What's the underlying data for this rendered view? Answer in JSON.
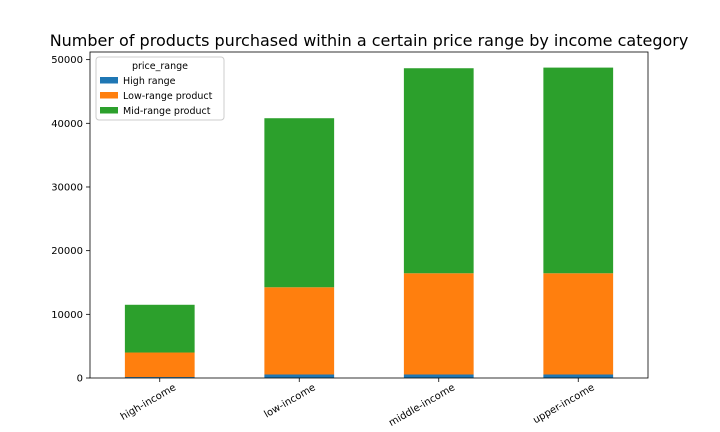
{
  "chart_data": {
    "type": "bar",
    "stacked": true,
    "title": "Number of products purchased within a certain price range by income category",
    "xlabel": "",
    "ylabel": "",
    "categories": [
      "high-income",
      "low-income",
      "middle-income",
      "upper-income"
    ],
    "series": [
      {
        "name": "High range",
        "color": "#1f77b4",
        "values": [
          150,
          550,
          550,
          550
        ]
      },
      {
        "name": "Low-range product",
        "color": "#ff7f0e",
        "values": [
          3850,
          13700,
          15900,
          15900
        ]
      },
      {
        "name": "Mid-range product",
        "color": "#2ca02c",
        "values": [
          7500,
          26550,
          32200,
          32300
        ]
      }
    ],
    "ylim": [
      0,
      51200
    ],
    "yticks": [
      0,
      10000,
      20000,
      30000,
      40000,
      50000
    ],
    "legend": {
      "title": "price_range",
      "position": "top-left"
    },
    "grid": false
  }
}
